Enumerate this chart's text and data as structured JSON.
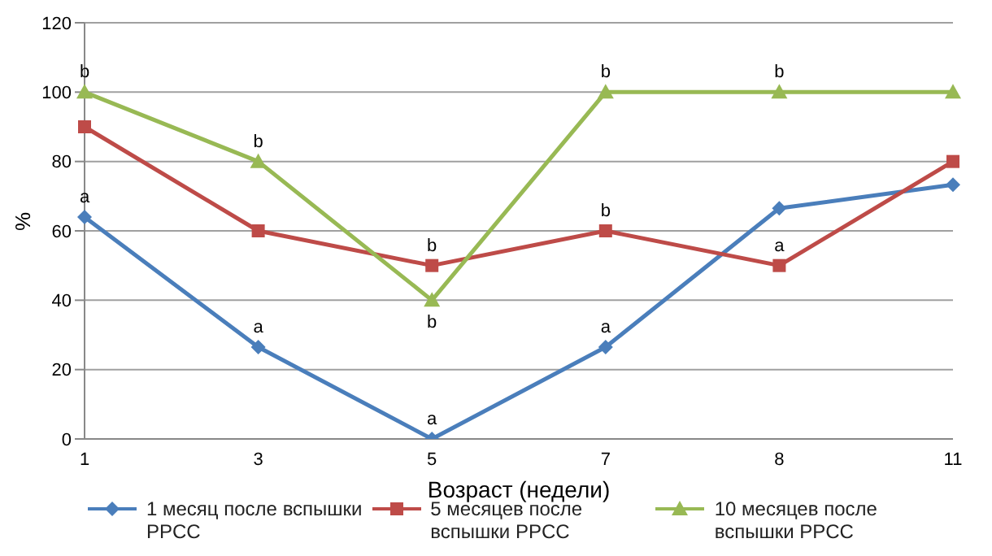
{
  "chart_data": {
    "type": "line",
    "xlabel": "Возраст (недели)",
    "ylabel": "%",
    "categories": [
      "1",
      "3",
      "5",
      "7",
      "8",
      "11"
    ],
    "series": [
      {
        "name": "1 месяц после вспышки PPCC",
        "color": "#4a7ebb",
        "values": [
          64,
          26.5,
          0,
          26.5,
          66.5,
          73.3
        ],
        "marker": "diamond"
      },
      {
        "name": "5 месяцев после вспышки PPCC",
        "color": "#be4b48",
        "values": [
          90,
          60,
          50,
          60,
          50,
          80
        ],
        "marker": "square"
      },
      {
        "name": "10 месяцев после вспышки PPCC",
        "color": "#98b954",
        "values": [
          100,
          80,
          40,
          100,
          100,
          100
        ],
        "marker": "triangle"
      }
    ],
    "ylim": [
      0,
      120
    ],
    "yticks": [
      0,
      20,
      40,
      60,
      80,
      100,
      120
    ],
    "grid": "y",
    "legend": "bottom",
    "line_style": "solid",
    "annotations": [
      {
        "text": "a",
        "x": "1",
        "y": 64
      },
      {
        "text": "a",
        "x": "3",
        "y": 26.5
      },
      {
        "text": "a",
        "x": "5",
        "y": 0
      },
      {
        "text": "a",
        "x": "7",
        "y": 26.5
      },
      {
        "text": "b",
        "x": "5",
        "y": 50
      },
      {
        "text": "b",
        "x": "7",
        "y": 60
      },
      {
        "text": "a",
        "x": "8",
        "y": 50
      },
      {
        "text": "b",
        "x": "1",
        "y": 100
      },
      {
        "text": "b",
        "x": "3",
        "y": 80
      },
      {
        "text": "b",
        "x": "5",
        "y": 40
      },
      {
        "text": "b",
        "x": "7",
        "y": 100
      },
      {
        "text": "b",
        "x": "8",
        "y": 100
      }
    ]
  }
}
